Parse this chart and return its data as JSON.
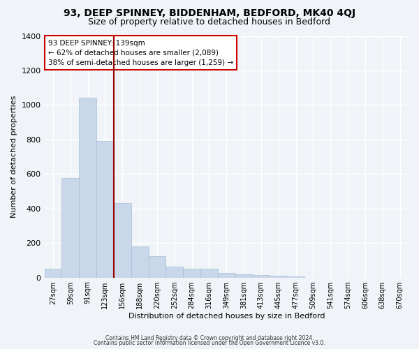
{
  "title1": "93, DEEP SPINNEY, BIDDENHAM, BEDFORD, MK40 4QJ",
  "title2": "Size of property relative to detached houses in Bedford",
  "xlabel": "Distribution of detached houses by size in Bedford",
  "ylabel": "Number of detached properties",
  "categories": [
    "27sqm",
    "59sqm",
    "91sqm",
    "123sqm",
    "156sqm",
    "188sqm",
    "220sqm",
    "252sqm",
    "284sqm",
    "316sqm",
    "349sqm",
    "381sqm",
    "413sqm",
    "445sqm",
    "477sqm",
    "509sqm",
    "541sqm",
    "574sqm",
    "606sqm",
    "638sqm",
    "670sqm"
  ],
  "values": [
    50,
    575,
    1040,
    790,
    430,
    180,
    125,
    65,
    50,
    50,
    28,
    20,
    15,
    10,
    8,
    0,
    0,
    0,
    0,
    0,
    0
  ],
  "bar_color": "#c8d8ea",
  "bar_edge_color": "#aabdd4",
  "vline_color": "#990000",
  "annotation_line1": "93 DEEP SPINNEY: 139sqm",
  "annotation_line2": "← 62% of detached houses are smaller (2,089)",
  "annotation_line3": "38% of semi-detached houses are larger (1,259) →",
  "annotation_box_facecolor": "#ffffff",
  "annotation_box_edgecolor": "#cc0000",
  "ylim": [
    0,
    1400
  ],
  "yticks": [
    0,
    200,
    400,
    600,
    800,
    1000,
    1200,
    1400
  ],
  "footer1": "Contains HM Land Registry data © Crown copyright and database right 2024.",
  "footer2": "Contains public sector information licensed under the Open Government Licence v3.0.",
  "bg_color": "#f0f4f8",
  "plot_bg_color": "#f0f4f8",
  "title1_fontsize": 10,
  "title2_fontsize": 9,
  "xlabel_fontsize": 8,
  "ylabel_fontsize": 8,
  "xtick_fontsize": 7,
  "ytick_fontsize": 8,
  "footer_fontsize": 5.5,
  "vline_x": 3.5
}
